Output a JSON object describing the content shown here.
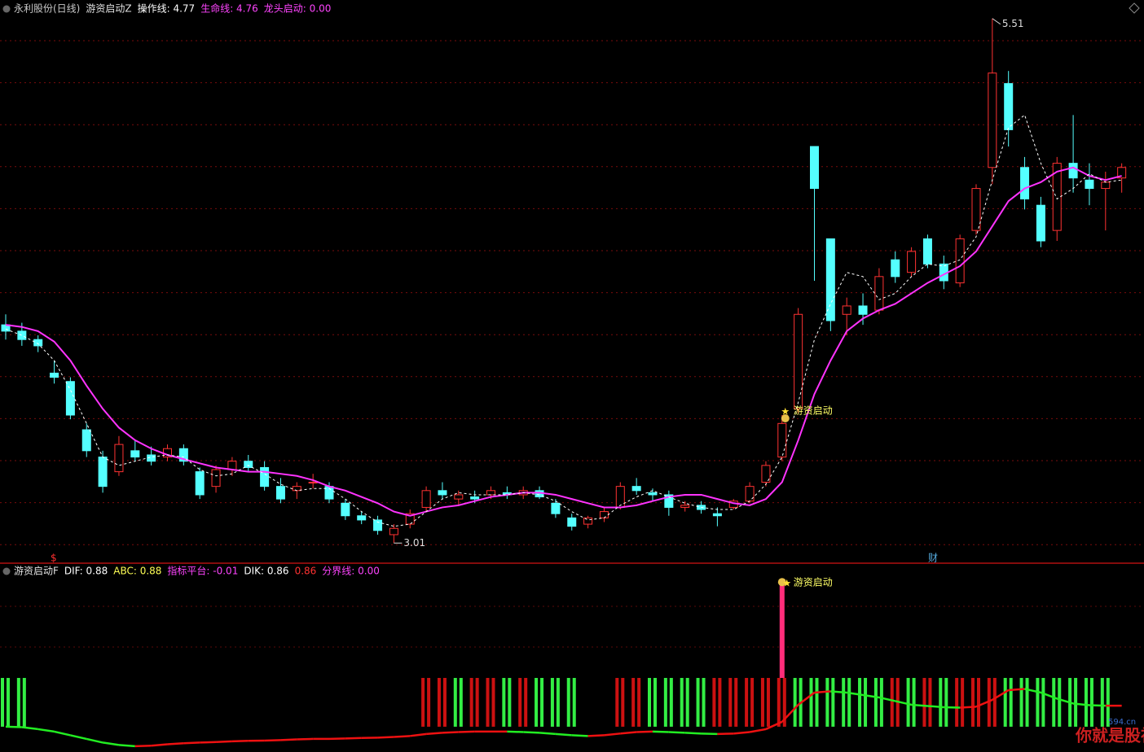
{
  "chart_data": [
    {
      "type": "candlestick",
      "header": [
        {
          "text": "永利股份(日线)",
          "color": "#c8c8c8"
        },
        {
          "text": "游资启动Z",
          "color": "#e0e0e0"
        },
        {
          "text": "操作线: 4.77",
          "color": "#ffffff"
        },
        {
          "text": "生命线: 4.76",
          "color": "#ff44ff"
        },
        {
          "text": "龙头启动: 0.00",
          "color": "#ff44ff"
        }
      ],
      "open": [
        4.05,
        4.02,
        3.98,
        3.82,
        3.78,
        3.55,
        3.42,
        3.35,
        3.45,
        3.43,
        3.42,
        3.46,
        3.35,
        3.28,
        3.36,
        3.4,
        3.37,
        3.28,
        3.26,
        3.3,
        3.28,
        3.2,
        3.14,
        3.12,
        3.05,
        3.1,
        3.18,
        3.26,
        3.22,
        3.23,
        3.24,
        3.25,
        3.24,
        3.26,
        3.2,
        3.13,
        3.1,
        3.13,
        3.18,
        3.28,
        3.25,
        3.24,
        3.18,
        3.19,
        3.15,
        3.18,
        3.21,
        3.3,
        3.42,
        3.65,
        4.9,
        4.46,
        4.1,
        4.14,
        4.12,
        4.36,
        4.3,
        4.46,
        4.34,
        4.25,
        4.5,
        4.8,
        5.2,
        4.8,
        4.62,
        4.5,
        4.82,
        4.74,
        4.7,
        4.75
      ],
      "high": [
        4.1,
        4.06,
        4.0,
        3.88,
        3.8,
        3.58,
        3.45,
        3.52,
        3.5,
        3.47,
        3.48,
        3.48,
        3.37,
        3.38,
        3.42,
        3.43,
        3.4,
        3.32,
        3.3,
        3.34,
        3.3,
        3.22,
        3.16,
        3.14,
        3.1,
        3.17,
        3.28,
        3.3,
        3.26,
        3.26,
        3.28,
        3.28,
        3.28,
        3.28,
        3.22,
        3.15,
        3.14,
        3.18,
        3.3,
        3.32,
        3.27,
        3.26,
        3.21,
        3.21,
        3.18,
        3.22,
        3.3,
        3.4,
        3.62,
        4.13,
        4.9,
        4.46,
        4.18,
        4.2,
        4.32,
        4.4,
        4.42,
        4.48,
        4.38,
        4.48,
        4.72,
        5.51,
        5.26,
        4.85,
        4.66,
        4.85,
        5.05,
        4.82,
        4.78,
        4.82
      ],
      "low": [
        3.98,
        3.95,
        3.92,
        3.77,
        3.6,
        3.42,
        3.25,
        3.33,
        3.4,
        3.38,
        3.4,
        3.38,
        3.22,
        3.25,
        3.33,
        3.35,
        3.26,
        3.2,
        3.22,
        3.27,
        3.2,
        3.12,
        3.1,
        3.05,
        3.01,
        3.08,
        3.16,
        3.22,
        3.19,
        3.2,
        3.22,
        3.22,
        3.22,
        3.22,
        3.13,
        3.07,
        3.08,
        3.11,
        3.17,
        3.24,
        3.21,
        3.14,
        3.16,
        3.15,
        3.09,
        3.17,
        3.2,
        3.28,
        3.4,
        3.63,
        4.26,
        4.02,
        4.0,
        4.05,
        4.1,
        4.25,
        4.28,
        4.32,
        4.22,
        4.23,
        4.48,
        4.72,
        4.9,
        4.6,
        4.42,
        4.45,
        4.68,
        4.62,
        4.5,
        4.68
      ],
      "close": [
        4.02,
        3.98,
        3.95,
        3.8,
        3.62,
        3.45,
        3.28,
        3.48,
        3.42,
        3.4,
        3.46,
        3.4,
        3.24,
        3.36,
        3.4,
        3.37,
        3.28,
        3.22,
        3.28,
        3.3,
        3.22,
        3.14,
        3.12,
        3.07,
        3.08,
        3.15,
        3.26,
        3.24,
        3.24,
        3.22,
        3.26,
        3.24,
        3.26,
        3.23,
        3.15,
        3.09,
        3.13,
        3.16,
        3.28,
        3.26,
        3.24,
        3.18,
        3.19,
        3.17,
        3.14,
        3.21,
        3.28,
        3.38,
        3.58,
        4.1,
        4.7,
        4.07,
        4.14,
        4.1,
        4.28,
        4.28,
        4.4,
        4.34,
        4.26,
        4.46,
        4.7,
        5.25,
        4.98,
        4.65,
        4.45,
        4.82,
        4.75,
        4.7,
        4.73,
        4.8
      ],
      "up_color": "#ff3232",
      "down_color": "#54ffff",
      "life_line": {
        "color": "#ff33ff",
        "values": [
          4.05,
          4.04,
          4.02,
          3.97,
          3.88,
          3.76,
          3.65,
          3.56,
          3.5,
          3.46,
          3.43,
          3.41,
          3.39,
          3.37,
          3.36,
          3.35,
          3.35,
          3.34,
          3.33,
          3.31,
          3.28,
          3.26,
          3.23,
          3.2,
          3.16,
          3.14,
          3.16,
          3.18,
          3.19,
          3.21,
          3.23,
          3.24,
          3.25,
          3.25,
          3.24,
          3.22,
          3.2,
          3.18,
          3.18,
          3.19,
          3.21,
          3.23,
          3.24,
          3.24,
          3.22,
          3.2,
          3.19,
          3.22,
          3.3,
          3.5,
          3.72,
          3.88,
          4.02,
          4.08,
          4.12,
          4.15,
          4.2,
          4.25,
          4.29,
          4.33,
          4.4,
          4.52,
          4.64,
          4.7,
          4.73,
          4.78,
          4.8,
          4.76,
          4.74,
          4.76
        ]
      },
      "op_line": {
        "color": "#ffffff",
        "values": [
          4.03,
          4.0,
          3.96,
          3.88,
          3.74,
          3.58,
          3.42,
          3.38,
          3.4,
          3.42,
          3.43,
          3.42,
          3.36,
          3.33,
          3.34,
          3.38,
          3.34,
          3.29,
          3.26,
          3.27,
          3.27,
          3.22,
          3.16,
          3.11,
          3.09,
          3.1,
          3.16,
          3.22,
          3.25,
          3.24,
          3.24,
          3.24,
          3.25,
          3.24,
          3.21,
          3.16,
          3.12,
          3.13,
          3.19,
          3.23,
          3.26,
          3.23,
          3.2,
          3.18,
          3.17,
          3.17,
          3.21,
          3.29,
          3.42,
          3.68,
          3.98,
          4.15,
          4.3,
          4.28,
          4.17,
          4.2,
          4.28,
          4.34,
          4.33,
          4.36,
          4.47,
          4.74,
          4.99,
          5.05,
          4.82,
          4.65,
          4.7,
          4.77,
          4.73,
          4.74
        ]
      },
      "ylim": [
        2.98,
        5.54
      ],
      "annotation": "游资启动",
      "marker_dollar": "$",
      "marker_cai": "财"
    },
    {
      "type": "indicator",
      "header": [
        {
          "text": "游资启动F",
          "color": "#e0e0e0"
        },
        {
          "text": "DIF: 0.88",
          "color": "#ffffff"
        },
        {
          "text": "ABC: 0.88",
          "color": "#ffff55"
        },
        {
          "text": "指标平台: -0.01",
          "color": "#ff44ff"
        },
        {
          "text": "DIK: 0.86",
          "color": "#ffffff"
        },
        {
          "text": "0.86",
          "color": "#ff3232"
        },
        {
          "text": "分界线: 0.00",
          "color": "#ff44ff"
        }
      ],
      "values": [
        2,
        2,
        null,
        null,
        null,
        null,
        null,
        null,
        null,
        null,
        null,
        null,
        null,
        null,
        null,
        null,
        null,
        null,
        null,
        null,
        null,
        null,
        null,
        null,
        null,
        null,
        2,
        2,
        2,
        2,
        2,
        2,
        2,
        2,
        2,
        2,
        null,
        null,
        2,
        2,
        2,
        2,
        2,
        2,
        2,
        2,
        2,
        2,
        2,
        2,
        2,
        2,
        2,
        2,
        2,
        2,
        2,
        2,
        2,
        2,
        2,
        2,
        2,
        2,
        2,
        2,
        2,
        2,
        2,
        null
      ],
      "colors": [
        "#33ee44",
        "#33ee44",
        null,
        null,
        null,
        null,
        null,
        null,
        null,
        null,
        null,
        null,
        null,
        null,
        null,
        null,
        null,
        null,
        null,
        null,
        null,
        null,
        null,
        null,
        null,
        null,
        "#cc1111",
        "#cc1111",
        "#33ee44",
        "#cc1111",
        "#cc1111",
        "#33ee44",
        "#cc1111",
        "#33ee44",
        "#33ee44",
        "#33ee44",
        null,
        null,
        "#cc1111",
        "#cc1111",
        "#33ee44",
        "#33ee44",
        "#33ee44",
        "#33ee44",
        "#cc1111",
        "#cc1111",
        "#cc1111",
        "#cc1111",
        "#cc1111",
        "#33ee44",
        "#33ee44",
        "#33ee44",
        "#33ee44",
        "#33ee44",
        "#33ee44",
        "#cc1111",
        "#33ee44",
        "#cc1111",
        "#33ee44",
        "#cc1111",
        "#cc1111",
        "#cc1111",
        "#33ee44",
        "#33ee44",
        "#33ee44",
        "#33ee44",
        "#33ee44",
        "#33ee44",
        "#33ee44",
        null
      ],
      "signal": [
        null,
        null,
        null,
        null,
        null,
        null,
        null,
        null,
        null,
        null,
        null,
        null,
        null,
        null,
        null,
        null,
        null,
        null,
        null,
        null,
        null,
        null,
        null,
        null,
        null,
        null,
        null,
        null,
        null,
        null,
        null,
        null,
        null,
        null,
        null,
        null,
        null,
        null,
        null,
        null,
        null,
        null,
        null,
        null,
        null,
        null,
        null,
        null,
        5.83,
        null,
        null,
        null,
        null,
        null,
        null,
        null,
        null,
        null,
        null,
        null,
        null,
        null,
        null,
        null,
        null,
        null,
        null,
        null,
        null,
        null
      ],
      "signal_color": "#ff2d7a",
      "dif": [
        0.0,
        -0.02,
        -0.1,
        -0.2,
        -0.35,
        -0.5,
        -0.65,
        -0.75,
        -0.8,
        -0.78,
        -0.72,
        -0.68,
        -0.65,
        -0.63,
        -0.6,
        -0.58,
        -0.57,
        -0.55,
        -0.52,
        -0.5,
        -0.5,
        -0.48,
        -0.46,
        -0.45,
        -0.42,
        -0.38,
        -0.3,
        -0.25,
        -0.22,
        -0.2,
        -0.2,
        -0.2,
        -0.22,
        -0.25,
        -0.3,
        -0.35,
        -0.38,
        -0.35,
        -0.28,
        -0.22,
        -0.2,
        -0.22,
        -0.25,
        -0.28,
        -0.3,
        -0.28,
        -0.22,
        -0.1,
        0.2,
        0.9,
        1.4,
        1.45,
        1.4,
        1.3,
        1.2,
        1.05,
        0.9,
        0.85,
        0.8,
        0.78,
        0.82,
        1.1,
        1.5,
        1.55,
        1.4,
        1.15,
        0.95,
        0.88,
        0.86,
        0.86
      ],
      "up_color": "#ee1111",
      "down_color": "#22ee22",
      "ylim": [
        -0.97,
        6.27
      ],
      "annotation": "游资启动"
    }
  ],
  "watermark": {
    "main": "你就是股神",
    "site": "594.cn"
  }
}
